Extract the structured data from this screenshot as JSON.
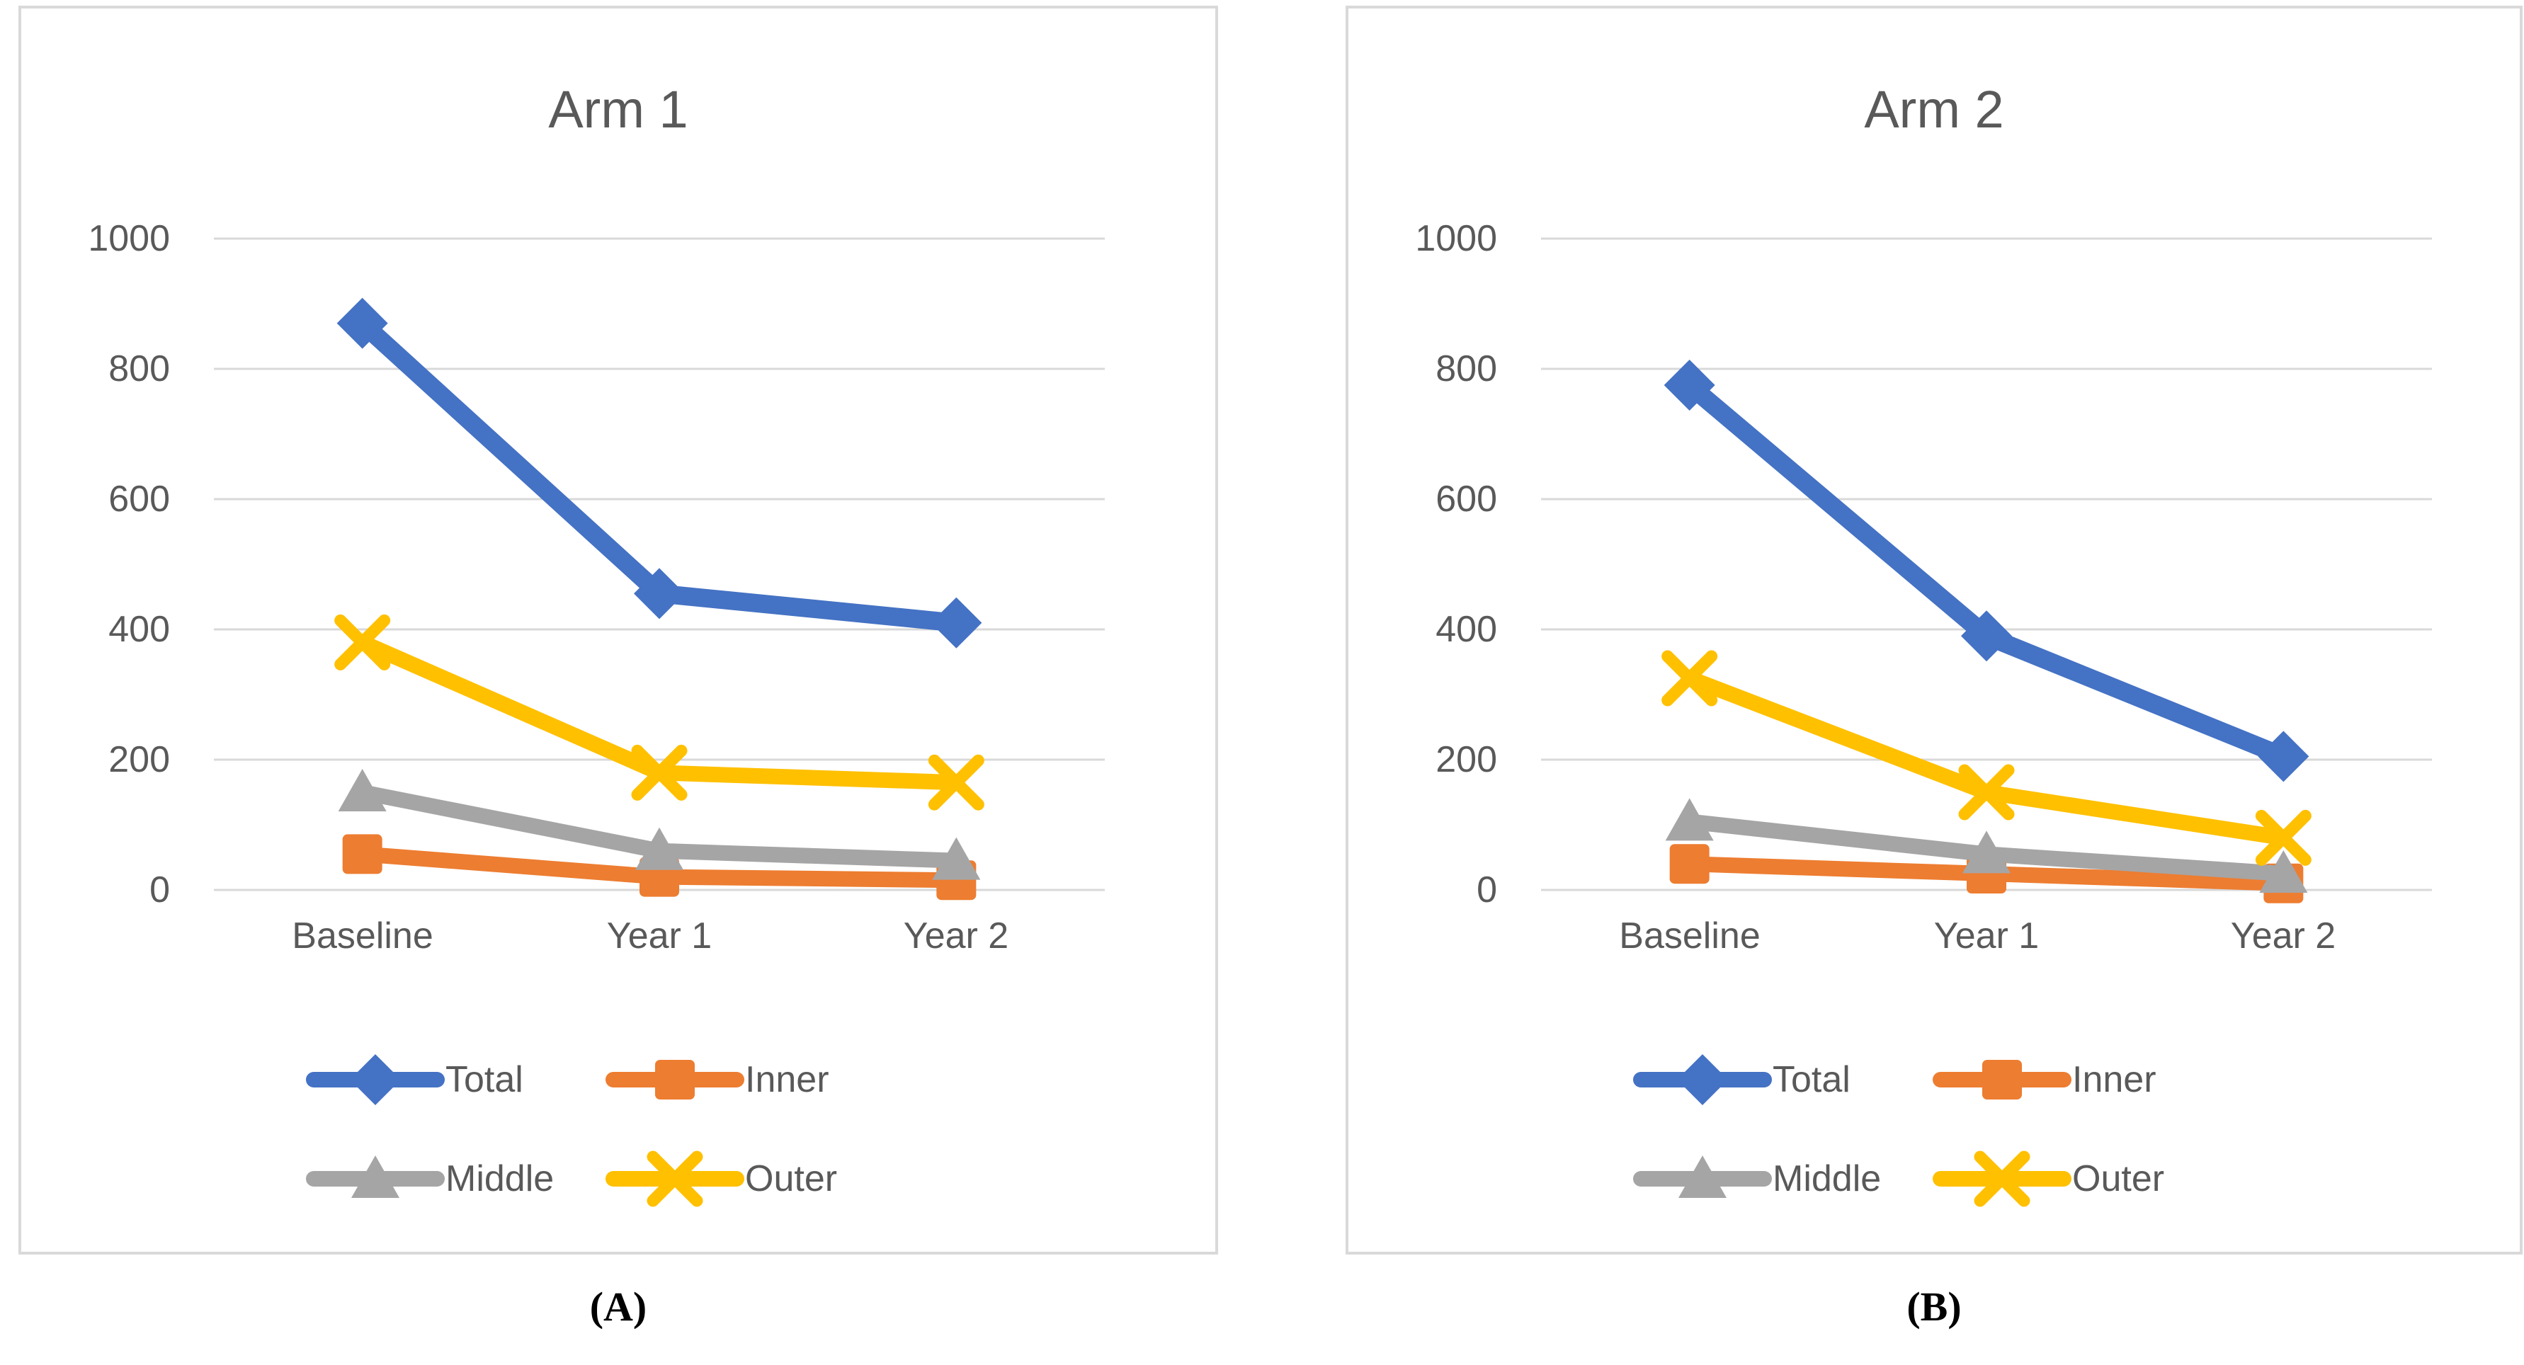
{
  "captions": {
    "left": "(A)",
    "right": "(B)"
  },
  "colors": {
    "total": "#4472C4",
    "inner": "#ED7D31",
    "middle": "#A5A5A5",
    "outer": "#FFC000",
    "gridline": "#D9D9D9",
    "text": "#595959",
    "panel_border": "#D9D9D9"
  },
  "chart_data": [
    {
      "type": "line",
      "title": "Arm 1",
      "categories": [
        "Baseline",
        "Year 1",
        "Year 2"
      ],
      "y_ticks": [
        1000,
        800,
        600,
        400,
        200,
        0
      ],
      "ylim": [
        0,
        1000
      ],
      "grid": true,
      "legend_position": "bottom",
      "series": [
        {
          "name": "Total",
          "marker": "diamond",
          "color_key": "total",
          "values": [
            870,
            455,
            410
          ]
        },
        {
          "name": "Inner",
          "marker": "square",
          "color_key": "inner",
          "values": [
            55,
            20,
            15
          ]
        },
        {
          "name": "Middle",
          "marker": "triangle",
          "color_key": "middle",
          "values": [
            150,
            60,
            45
          ]
        },
        {
          "name": "Outer",
          "marker": "x",
          "color_key": "outer",
          "values": [
            380,
            180,
            165
          ]
        }
      ]
    },
    {
      "type": "line",
      "title": "Arm 2",
      "categories": [
        "Baseline",
        "Year 1",
        "Year 2"
      ],
      "y_ticks": [
        1000,
        800,
        600,
        400,
        200,
        0
      ],
      "ylim": [
        0,
        1000
      ],
      "grid": true,
      "legend_position": "bottom",
      "series": [
        {
          "name": "Total",
          "marker": "diamond",
          "color_key": "total",
          "values": [
            775,
            390,
            205
          ]
        },
        {
          "name": "Inner",
          "marker": "square",
          "color_key": "inner",
          "values": [
            40,
            25,
            10
          ]
        },
        {
          "name": "Middle",
          "marker": "triangle",
          "color_key": "middle",
          "values": [
            105,
            55,
            25
          ]
        },
        {
          "name": "Outer",
          "marker": "x",
          "color_key": "outer",
          "values": [
            325,
            150,
            80
          ]
        }
      ]
    }
  ]
}
